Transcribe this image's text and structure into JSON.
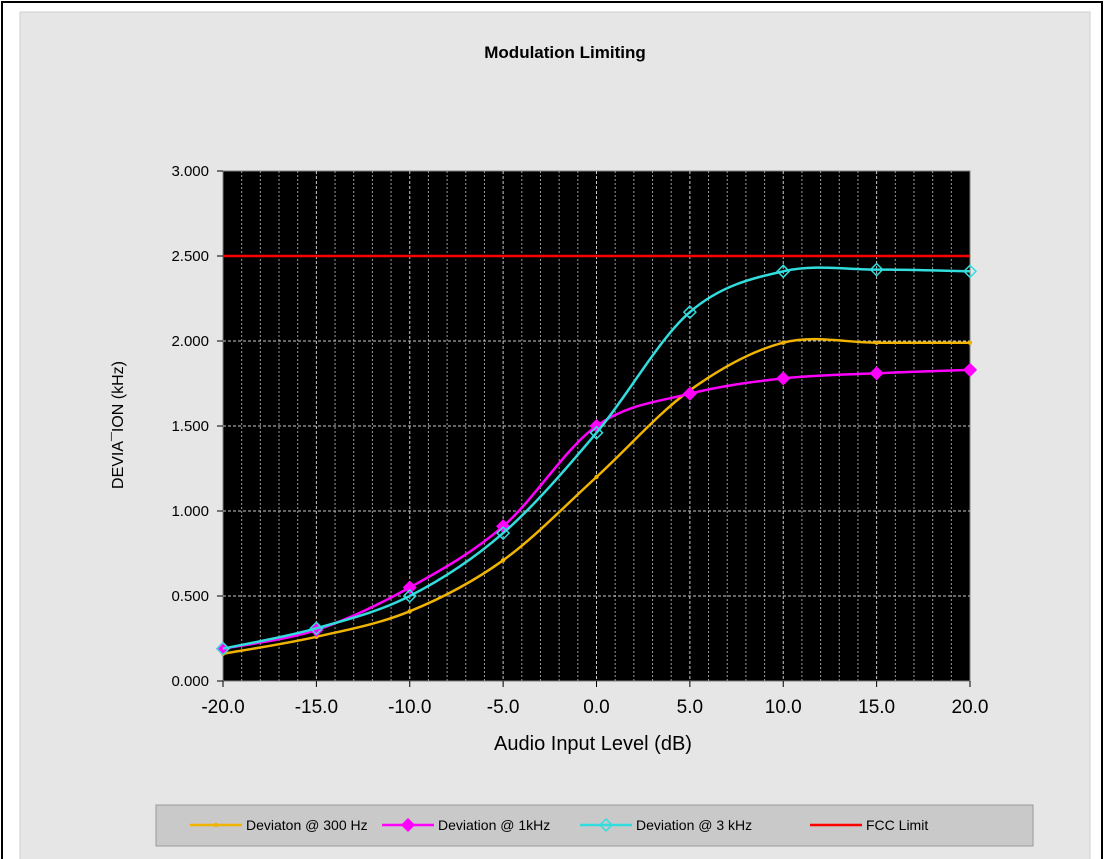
{
  "chart_data": {
    "type": "line",
    "title": "Modulation Limiting",
    "xlabel": "Audio Input Level (dB)",
    "ylabel": "DEVIA¯ION (kHz)",
    "x": [
      -20,
      -15,
      -10,
      -5,
      0,
      5,
      10,
      15,
      20
    ],
    "xlim": [
      -20,
      20
    ],
    "ylim": [
      0,
      3
    ],
    "x_ticks": [
      "-20.0",
      "-15.0",
      "-10.0",
      "-5.0",
      "0.0",
      "5.0",
      "10.0",
      "15.0",
      "20.0"
    ],
    "y_ticks": [
      "0.000",
      "0.500",
      "1.000",
      "1.500",
      "2.000",
      "2.500",
      "3.000"
    ],
    "x_tick_values": [
      -20,
      -15,
      -10,
      -5,
      0,
      5,
      10,
      15,
      20
    ],
    "y_tick_values": [
      0,
      0.5,
      1,
      1.5,
      2,
      2.5,
      3
    ],
    "grid": true,
    "legend_position": "bottom",
    "plot_background": "#000000",
    "series": [
      {
        "name": "Deviaton @ 300 Hz",
        "color": "#f0b400",
        "marker": "dot",
        "values": [
          0.16,
          0.26,
          0.41,
          0.71,
          1.2,
          1.71,
          1.99,
          1.99,
          1.99
        ]
      },
      {
        "name": "Deviation @ 1kHz",
        "color": "#ff00ff",
        "marker": "diamond-filled",
        "values": [
          0.19,
          0.3,
          0.55,
          0.91,
          1.5,
          1.69,
          1.78,
          1.81,
          1.83
        ]
      },
      {
        "name": "Deviation @ 3 kHz",
        "color": "#33dddd",
        "marker": "diamond-open",
        "values": [
          0.19,
          0.31,
          0.5,
          0.87,
          1.46,
          2.17,
          2.41,
          2.42,
          2.41
        ]
      },
      {
        "name": "FCC Limit",
        "color": "#ff0000",
        "marker": "none",
        "values": [
          2.5,
          2.5,
          2.5,
          2.5,
          2.5,
          2.5,
          2.5,
          2.5,
          2.5
        ]
      }
    ]
  }
}
